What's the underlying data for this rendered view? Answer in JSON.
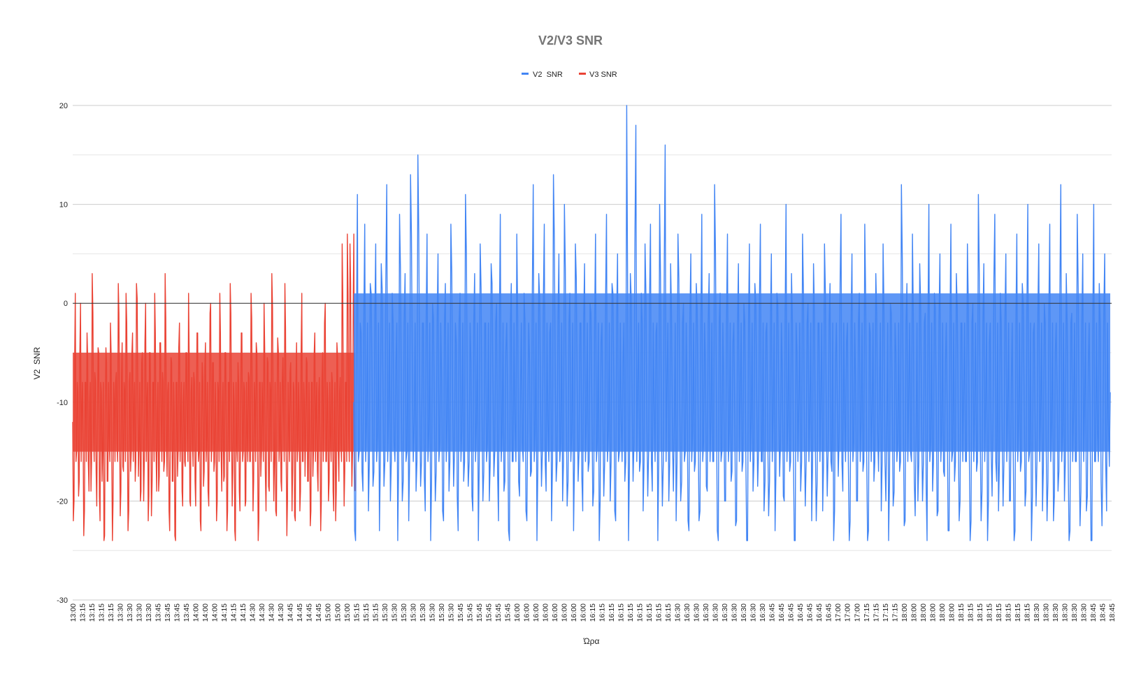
{
  "chart_data": {
    "type": "line",
    "title": "V2/V3 SNR",
    "xlabel": "Ώρα",
    "ylabel": "V2  SNR",
    "ylim": [
      -30,
      20
    ],
    "y_ticks": [
      20,
      10,
      0,
      -10,
      -20,
      -30
    ],
    "grid": true,
    "legend_position": "top",
    "x_tick_labels": [
      "13:00",
      "13:15",
      "13:15",
      "13:15",
      "13:15",
      "13:30",
      "13:30",
      "13:30",
      "13:30",
      "13:45",
      "13:45",
      "13:45",
      "13:45",
      "14:00",
      "14:00",
      "14:00",
      "14:15",
      "14:15",
      "14:15",
      "14:30",
      "14:30",
      "14:30",
      "14:30",
      "14:45",
      "14:45",
      "14:45",
      "14:45",
      "15:00",
      "15:00",
      "15:00",
      "15:15",
      "15:15",
      "15:15",
      "15:30",
      "15:30",
      "15:30",
      "15:30",
      "15:30",
      "15:30",
      "15:30",
      "15:30",
      "15:45",
      "15:45",
      "15:45",
      "15:45",
      "15:45",
      "15:45",
      "16:00",
      "16:00",
      "16:00",
      "16:00",
      "16:00",
      "16:00",
      "16:00",
      "16:00",
      "16:15",
      "16:15",
      "16:15",
      "16:15",
      "16:15",
      "16:15",
      "16:15",
      "16:15",
      "16:15",
      "16:30",
      "16:30",
      "16:30",
      "16:30",
      "16:30",
      "16:30",
      "16:30",
      "16:30",
      "16:30",
      "16:30",
      "16:45",
      "16:45",
      "16:45",
      "16:45",
      "16:45",
      "16:45",
      "16:45",
      "17:00",
      "17:00",
      "17:00",
      "17:15",
      "17:15",
      "17:15",
      "17:15",
      "18:00",
      "18:00",
      "18:00",
      "18:00",
      "18:00",
      "18:00",
      "18:15",
      "18:15",
      "18:15",
      "18:15",
      "18:15",
      "18:15",
      "18:15",
      "18:15",
      "18:30",
      "18:30",
      "18:30",
      "18:30",
      "18:30",
      "18:30",
      "18:45",
      "18:45",
      "18:45"
    ],
    "series": [
      {
        "name": "V3 SNR",
        "color": "#ea4335",
        "x_start": "13:00",
        "x_end": "15:30",
        "typical_range": [
          -19,
          -2
        ],
        "min": -24,
        "max": 7,
        "values": [
          -12,
          -20,
          1,
          -15,
          -9,
          -18,
          0,
          -11,
          -14,
          -21,
          -8,
          -3,
          -16,
          -10,
          -19,
          3,
          -13,
          -7,
          -17,
          -12,
          -5,
          -22,
          -9,
          -15,
          -24,
          -11,
          -6,
          -18,
          -13,
          -2,
          -16,
          -20,
          -10,
          -8,
          -14,
          2,
          -12,
          -19,
          -4,
          -17,
          -9,
          1,
          -13,
          -21,
          -7,
          -15,
          -3,
          -11,
          -18,
          2,
          -9,
          -14,
          -20,
          -6,
          -12,
          -16,
          0,
          -10,
          -22,
          -5,
          -13,
          -18,
          -8,
          1,
          -15,
          -11,
          -19,
          -4,
          -12,
          -7,
          -17,
          3,
          -14,
          -9,
          -21,
          -13,
          -6,
          -18,
          -11,
          -24,
          -8,
          -15,
          -2,
          -12,
          -19,
          -10,
          -16,
          -5,
          -13,
          1,
          -20,
          -9,
          -14,
          -7,
          -18,
          -11,
          -3,
          -15,
          -22,
          -12,
          -8,
          -17,
          -4,
          -13,
          -19,
          -10,
          0,
          -14,
          -6,
          -16,
          -12,
          -20,
          -9,
          1,
          -15,
          -11,
          -18,
          -5,
          -13,
          -21,
          -8,
          2,
          -12,
          -17,
          -10,
          -24,
          -14,
          -6,
          -19,
          -11,
          -3,
          -15,
          -9,
          -20,
          -13,
          -7,
          -16,
          1,
          -12,
          -18,
          -10,
          -4,
          -14,
          -22,
          -8,
          -15,
          -11,
          0,
          -17,
          -13,
          -6,
          -19,
          -9,
          3,
          -12,
          -16,
          -21,
          -10,
          -5,
          -14,
          -18,
          -8,
          -11,
          2,
          -15,
          -20,
          -12,
          -7,
          -13,
          -17,
          -9,
          -22,
          -4,
          -14,
          -11,
          -19,
          1,
          -16,
          -10,
          -13,
          -6,
          -18,
          -12,
          -21,
          -8,
          -15,
          -3,
          -11,
          -17,
          -9,
          -14,
          -20,
          -5,
          -12,
          0,
          -16,
          -10,
          -18,
          -13,
          -7,
          -19,
          -11,
          -22,
          -4,
          -15,
          -9,
          -14,
          6,
          -12,
          -17,
          -8,
          7,
          -13,
          6,
          -10,
          -15,
          7,
          -19
        ]
      },
      {
        "name": "V2  SNR",
        "color": "#4285f4",
        "x_start": "15:30",
        "x_end": "18:45",
        "typical_range": [
          -19,
          4
        ],
        "min": -24,
        "max": 20,
        "values": [
          -10,
          -24,
          11,
          -15,
          -3,
          -19,
          8,
          -12,
          -21,
          2,
          -8,
          -17,
          6,
          -13,
          -23,
          4,
          -9,
          -16,
          12,
          -11,
          -20,
          1,
          -14,
          -6,
          -24,
          9,
          -10,
          -18,
          3,
          -15,
          -22,
          13,
          -7,
          -12,
          -19,
          15,
          -9,
          -16,
          -2,
          -21,
          7,
          -13,
          -24,
          0,
          -11,
          -17,
          5,
          -14,
          -8,
          -22,
          2,
          -12,
          -19,
          8,
          -10,
          -15,
          -4,
          -23,
          1,
          -13,
          -18,
          11,
          -9,
          -16,
          -6,
          -21,
          3,
          -12,
          -24,
          6,
          -11,
          -17,
          -2,
          -14,
          -20,
          4,
          -8,
          -15,
          0,
          -22,
          9,
          -13,
          -19,
          -5,
          -10,
          -24,
          2,
          -16,
          -12,
          7,
          -18,
          -9,
          -14,
          1,
          -21,
          -11,
          -6,
          -17,
          12,
          -13,
          -24,
          3,
          -10,
          -15,
          8,
          -19,
          -12,
          -3,
          -22,
          13,
          -8,
          -16,
          5,
          -14,
          -20,
          10,
          -11,
          -18,
          1,
          -13,
          -23,
          6,
          -9,
          -15,
          -2,
          -21,
          4,
          -12,
          -17,
          0,
          -10,
          -19,
          7,
          -14,
          -24,
          -4,
          -11,
          -16,
          9,
          -13,
          -20,
          2,
          -8,
          -22,
          5,
          -15,
          -12,
          -6,
          -18,
          20,
          -24,
          3,
          -10,
          -14,
          18,
          -9,
          -17,
          1,
          -21,
          6,
          -12,
          -15,
          8,
          -19,
          -11,
          -3,
          -24,
          10,
          -13,
          -16,
          16,
          -8,
          -20,
          4,
          -14,
          -12,
          -22,
          7,
          -10,
          -18,
          0,
          -15,
          -9,
          -23,
          5,
          -13,
          -17,
          2,
          -11,
          -21,
          9,
          -14,
          -6,
          -19,
          3,
          -12,
          -16,
          12,
          -10,
          -24,
          1,
          -15,
          -8,
          -20,
          7,
          -13,
          -18,
          -4,
          -11,
          -22,
          4,
          -9,
          -17,
          0,
          -14,
          -24,
          6,
          -12,
          -19,
          2,
          -10,
          -15,
          8,
          -16,
          -21,
          -3,
          -13,
          -18,
          5,
          -11,
          -23,
          1,
          -9,
          -14,
          -7,
          -20,
          10,
          -12,
          -17,
          3,
          -15,
          -24,
          -5,
          -10,
          -19,
          7,
          -13,
          -16,
          0,
          -11,
          -22,
          4,
          -14,
          -18,
          -2,
          -9,
          -21,
          6,
          -12,
          -15,
          2,
          -17,
          -24,
          -6,
          -10,
          -13,
          9,
          -19,
          -11,
          -4,
          -16,
          -22,
          5,
          -14,
          -8,
          -20,
          1,
          -12,
          -17,
          8,
          -15,
          -23,
          -3,
          -11,
          -18,
          3,
          -13,
          -9,
          -21,
          6,
          -16,
          -12,
          -24,
          0,
          -10,
          -19,
          -5,
          -14,
          -17,
          12,
          -11,
          -22,
          2,
          -9,
          -15,
          7,
          -18,
          -13,
          -20,
          4,
          -12,
          -16,
          -1,
          -24,
          10,
          -14,
          -19,
          1,
          -10,
          -21,
          5,
          -13,
          -17,
          -6,
          -11,
          -23,
          8,
          -15,
          -18,
          3,
          -12,
          -20,
          -2,
          -9,
          -16,
          6,
          -14,
          -22,
          0,
          -11,
          -17,
          11,
          -13,
          -19,
          4,
          -10,
          -24,
          -4,
          -15,
          -12,
          9,
          -18,
          -21,
          1,
          -13,
          -16,
          5,
          -11,
          -20,
          -8,
          -14,
          -23,
          7,
          -12,
          -17,
          2,
          -10,
          -19,
          10,
          -15,
          -24,
          -3,
          -13,
          -16,
          6,
          -11,
          -21,
          0,
          -14,
          -18,
          8,
          -12,
          -22,
          -5,
          -9,
          -17,
          12,
          -13,
          -20,
          3,
          -15,
          -23,
          -1,
          -11,
          -16,
          9,
          -14,
          -19,
          5,
          -10,
          -21,
          -6,
          -12,
          -24,
          10,
          -16,
          -13,
          2,
          -18,
          -15,
          5,
          -21,
          -12,
          -9
        ]
      }
    ]
  }
}
